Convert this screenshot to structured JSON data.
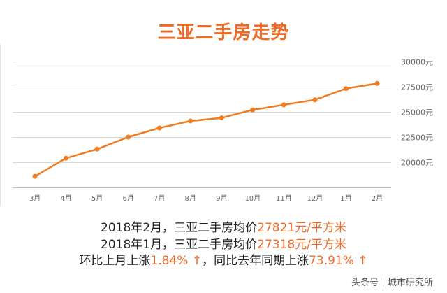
{
  "title": "三亚二手房走势",
  "chart_data": {
    "type": "line",
    "title": "三亚二手房走势",
    "categories": [
      "3月",
      "4月",
      "5月",
      "6月",
      "7月",
      "8月",
      "9月",
      "10月",
      "11月",
      "12月",
      "1月",
      "2月"
    ],
    "series": [
      {
        "name": "三亚二手房均价",
        "values": [
          18600,
          20400,
          21300,
          22500,
          23400,
          24100,
          24400,
          25200,
          25700,
          26200,
          27318,
          27821
        ],
        "color": "#f07c22"
      }
    ],
    "y_ticks": [
      "30000元",
      "27500元",
      "25000元",
      "22500元",
      "20000元"
    ],
    "y_tick_values": [
      30000,
      27500,
      25000,
      22500,
      20000
    ],
    "ylim": [
      17500,
      30000
    ],
    "y_axis_side": "right",
    "grid": true,
    "xlabel": "",
    "ylabel": ""
  },
  "info": {
    "line1": {
      "prefix": "2018年2月，三亚二手房均价",
      "value": "27821元/平方米"
    },
    "line2": {
      "prefix": "2018年1月，三亚二手房均价",
      "value": "27318元/平方米"
    },
    "line3": {
      "part1": "环比上月上涨",
      "mom": "1.84% ↑",
      "part2": "，同比去年同期上涨",
      "yoy": "73.91% ↑"
    }
  },
  "footer": {
    "source": "头条号",
    "author": "城市研究所"
  },
  "colors": {
    "accent": "#f06a24",
    "line": "#f07c22"
  }
}
